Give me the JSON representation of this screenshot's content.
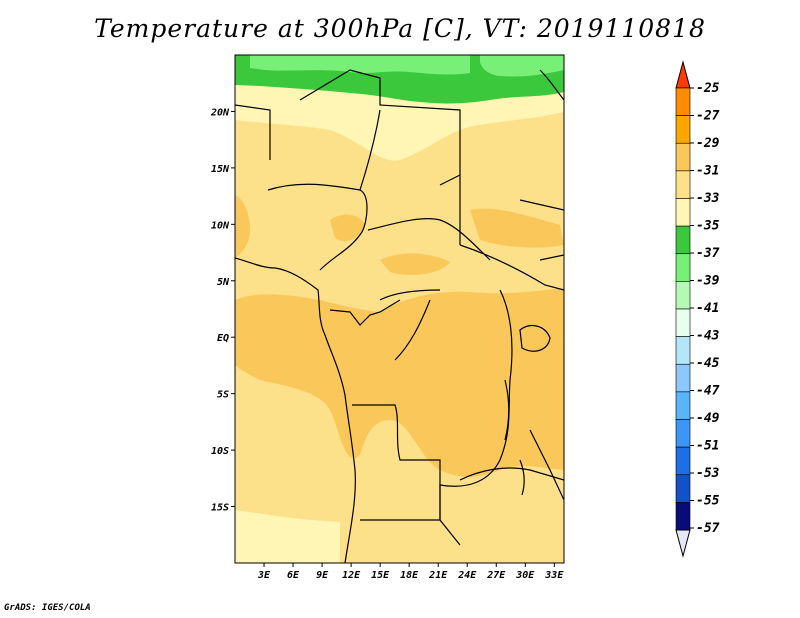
{
  "title": "Temperature at 300hPa [C], VT: 2019110818",
  "credit": "GrADS: IGES/COLA",
  "map": {
    "lon_range": [
      0,
      34
    ],
    "lat_range": [
      -20,
      25
    ],
    "x_ticks": [
      {
        "value": 3,
        "label": "3E"
      },
      {
        "value": 6,
        "label": "6E"
      },
      {
        "value": 9,
        "label": "9E"
      },
      {
        "value": 12,
        "label": "12E"
      },
      {
        "value": 15,
        "label": "15E"
      },
      {
        "value": 18,
        "label": "18E"
      },
      {
        "value": 21,
        "label": "21E"
      },
      {
        "value": 24,
        "label": "24E"
      },
      {
        "value": 27,
        "label": "27E"
      },
      {
        "value": 30,
        "label": "30E"
      },
      {
        "value": 33,
        "label": "33E"
      }
    ],
    "y_ticks": [
      {
        "value": 20,
        "label": "20N"
      },
      {
        "value": 15,
        "label": "15N"
      },
      {
        "value": 10,
        "label": "10N"
      },
      {
        "value": 5,
        "label": "5N"
      },
      {
        "value": 0,
        "label": "EQ"
      },
      {
        "value": -5,
        "label": "5S"
      },
      {
        "value": -10,
        "label": "10S"
      },
      {
        "value": -15,
        "label": "15S"
      }
    ]
  },
  "colorbar": {
    "levels": [
      {
        "label": "-25",
        "color": "#ff6400"
      },
      {
        "label": "-27",
        "color": "#ff8c00"
      },
      {
        "label": "-29",
        "color": "#ffa500"
      },
      {
        "label": "-31",
        "color": "#fac85a"
      },
      {
        "label": "-33",
        "color": "#fde08a"
      },
      {
        "label": "-35",
        "color": "#fff5b4"
      },
      {
        "label": "-37",
        "color": "#3cc83c"
      },
      {
        "label": "-39",
        "color": "#78f078"
      },
      {
        "label": "-41",
        "color": "#b4fab4"
      },
      {
        "label": "-43",
        "color": "#e6fff0"
      },
      {
        "label": "-45",
        "color": "#b4e6fa"
      },
      {
        "label": "-47",
        "color": "#8cc8fa"
      },
      {
        "label": "-49",
        "color": "#5ab4fa"
      },
      {
        "label": "-51",
        "color": "#3c96f5"
      },
      {
        "label": "-53",
        "color": "#1e6ee6"
      },
      {
        "label": "-55",
        "color": "#1450c8"
      },
      {
        "label": "-57",
        "color": "#0a0a78"
      }
    ],
    "top_color": "#ff3c00",
    "bottom_color": "#e6e6fa"
  }
}
